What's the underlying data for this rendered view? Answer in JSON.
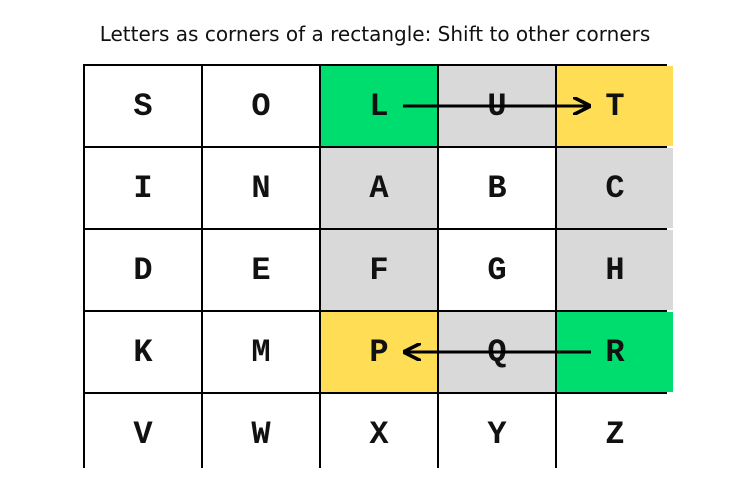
{
  "title": "Letters as corners of a rectangle: Shift to other corners",
  "colors": {
    "green": "#00dd6f",
    "yellow": "#ffdd55",
    "gray": "#d9d9d9",
    "white": "#ffffff"
  },
  "grid": [
    [
      "S",
      "O",
      "L",
      "U",
      "T"
    ],
    [
      "I",
      "N",
      "A",
      "B",
      "C"
    ],
    [
      "D",
      "E",
      "F",
      "G",
      "H"
    ],
    [
      "K",
      "M",
      "P",
      "Q",
      "R"
    ],
    [
      "V",
      "W",
      "X",
      "Y",
      "Z"
    ]
  ],
  "highlights": [
    [
      "white",
      "white",
      "green",
      "gray",
      "yellow"
    ],
    [
      "white",
      "white",
      "gray",
      "white",
      "gray"
    ],
    [
      "white",
      "white",
      "gray",
      "white",
      "gray"
    ],
    [
      "white",
      "white",
      "yellow",
      "gray",
      "green"
    ],
    [
      "white",
      "white",
      "white",
      "white",
      "white"
    ]
  ],
  "arrows": [
    {
      "from": [
        0,
        2
      ],
      "to": [
        0,
        4
      ]
    },
    {
      "from": [
        3,
        4
      ],
      "to": [
        3,
        2
      ]
    }
  ]
}
